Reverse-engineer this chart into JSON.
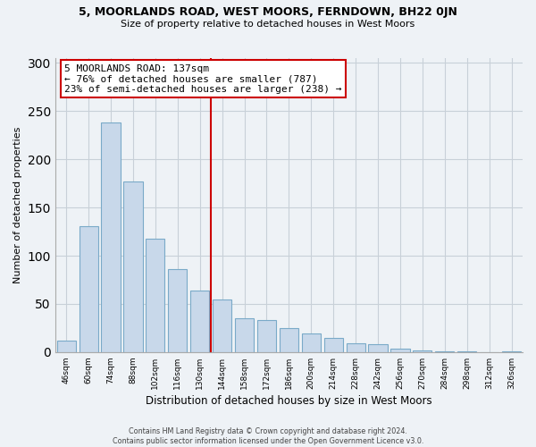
{
  "title1": "5, MOORLANDS ROAD, WEST MOORS, FERNDOWN, BH22 0JN",
  "title2": "Size of property relative to detached houses in West Moors",
  "xlabel": "Distribution of detached houses by size in West Moors",
  "ylabel": "Number of detached properties",
  "bar_color": "#c8d8ea",
  "bar_edge_color": "#7aaac8",
  "categories": [
    "46sqm",
    "60sqm",
    "74sqm",
    "88sqm",
    "102sqm",
    "116sqm",
    "130sqm",
    "144sqm",
    "158sqm",
    "172sqm",
    "186sqm",
    "200sqm",
    "214sqm",
    "228sqm",
    "242sqm",
    "256sqm",
    "270sqm",
    "284sqm",
    "298sqm",
    "312sqm",
    "326sqm"
  ],
  "values": [
    12,
    131,
    238,
    177,
    118,
    86,
    64,
    55,
    35,
    33,
    25,
    19,
    15,
    9,
    8,
    4,
    2,
    1,
    1,
    0,
    1
  ],
  "vline_color": "#cc0000",
  "box_edge_color": "#cc0000",
  "annotation_box_text": "5 MOORLANDS ROAD: 137sqm\n← 76% of detached houses are smaller (787)\n23% of semi-detached houses are larger (238) →",
  "footnote": "Contains HM Land Registry data © Crown copyright and database right 2024.\nContains public sector information licensed under the Open Government Licence v3.0.",
  "ylim": [
    0,
    305
  ],
  "grid_color": "#c8d0d8",
  "background_color": "#eef2f6"
}
